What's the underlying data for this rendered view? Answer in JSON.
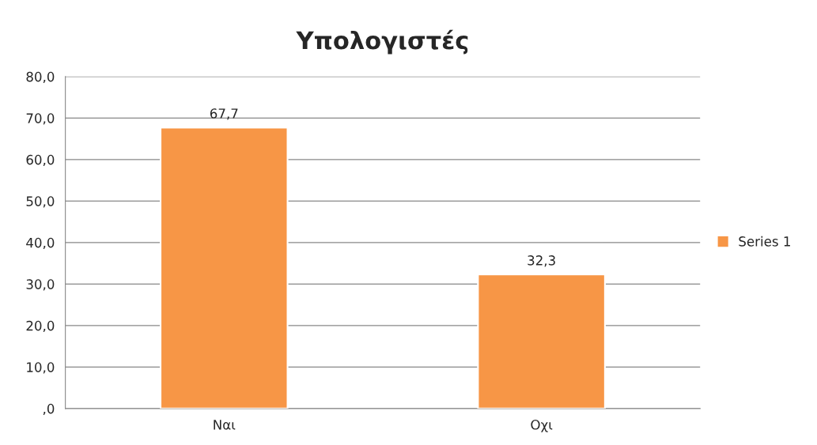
{
  "chart_data": {
    "type": "bar",
    "title": "Υπολογιστές",
    "categories": [
      "Ναι",
      "Οχι"
    ],
    "series": [
      {
        "name": "Series 1",
        "color": "#f79646",
        "values": [
          67.7,
          32.3
        ],
        "value_labels": [
          "67,7",
          "32,3"
        ]
      }
    ],
    "ylim": [
      0,
      80
    ],
    "yticks": [
      {
        "value": 0,
        "label": ",0"
      },
      {
        "value": 10,
        "label": "10,0"
      },
      {
        "value": 20,
        "label": "20,0"
      },
      {
        "value": 30,
        "label": "30,0"
      },
      {
        "value": 40,
        "label": "40,0"
      },
      {
        "value": 50,
        "label": "50,0"
      },
      {
        "value": 60,
        "label": "60,0"
      },
      {
        "value": 70,
        "label": "70,0"
      },
      {
        "value": 80,
        "label": "80,0"
      }
    ],
    "grid": "y",
    "legend": "right"
  }
}
